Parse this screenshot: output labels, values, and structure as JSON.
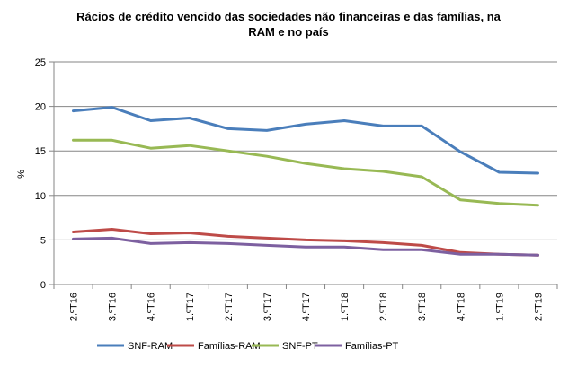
{
  "chart_data": {
    "type": "line",
    "title_lines": [
      "Rácios de crédito vencido das sociedades não financeiras e das famílias, na",
      "RAM e no país"
    ],
    "ylabel": "%",
    "ylim": [
      0,
      25
    ],
    "yticks": [
      "0",
      "5",
      "10",
      "15",
      "20",
      "25"
    ],
    "grid": true,
    "legend_position": "bottom",
    "categories": [
      "2.ºT16",
      "3.ºT16",
      "4.ºT16",
      "1.ºT17",
      "2.ºT17",
      "3.ºT17",
      "4.ºT17",
      "1.ºT18",
      "2.ºT18",
      "3.ºT18",
      "4.ºT18",
      "1.ºT19",
      "2.ºT19"
    ],
    "series": [
      {
        "name": "SNF-RAM",
        "color": "#4a7ebb",
        "values": [
          19.5,
          19.9,
          18.4,
          18.7,
          17.5,
          17.3,
          18.0,
          18.4,
          17.8,
          17.8,
          14.9,
          12.6,
          12.5
        ]
      },
      {
        "name": "Famílias-RAM",
        "color": "#be4b48",
        "values": [
          5.9,
          6.2,
          5.7,
          5.8,
          5.4,
          5.2,
          5.0,
          4.9,
          4.7,
          4.4,
          3.6,
          3.4,
          3.3
        ]
      },
      {
        "name": "SNF-PT",
        "color": "#98b954",
        "values": [
          16.2,
          16.2,
          15.3,
          15.6,
          15.0,
          14.4,
          13.6,
          13.0,
          12.7,
          12.1,
          9.5,
          9.1,
          8.9
        ]
      },
      {
        "name": "Famílias-PT",
        "color": "#7d60a0",
        "values": [
          5.1,
          5.2,
          4.6,
          4.7,
          4.6,
          4.4,
          4.2,
          4.2,
          3.9,
          3.9,
          3.4,
          3.4,
          3.3
        ]
      }
    ]
  }
}
